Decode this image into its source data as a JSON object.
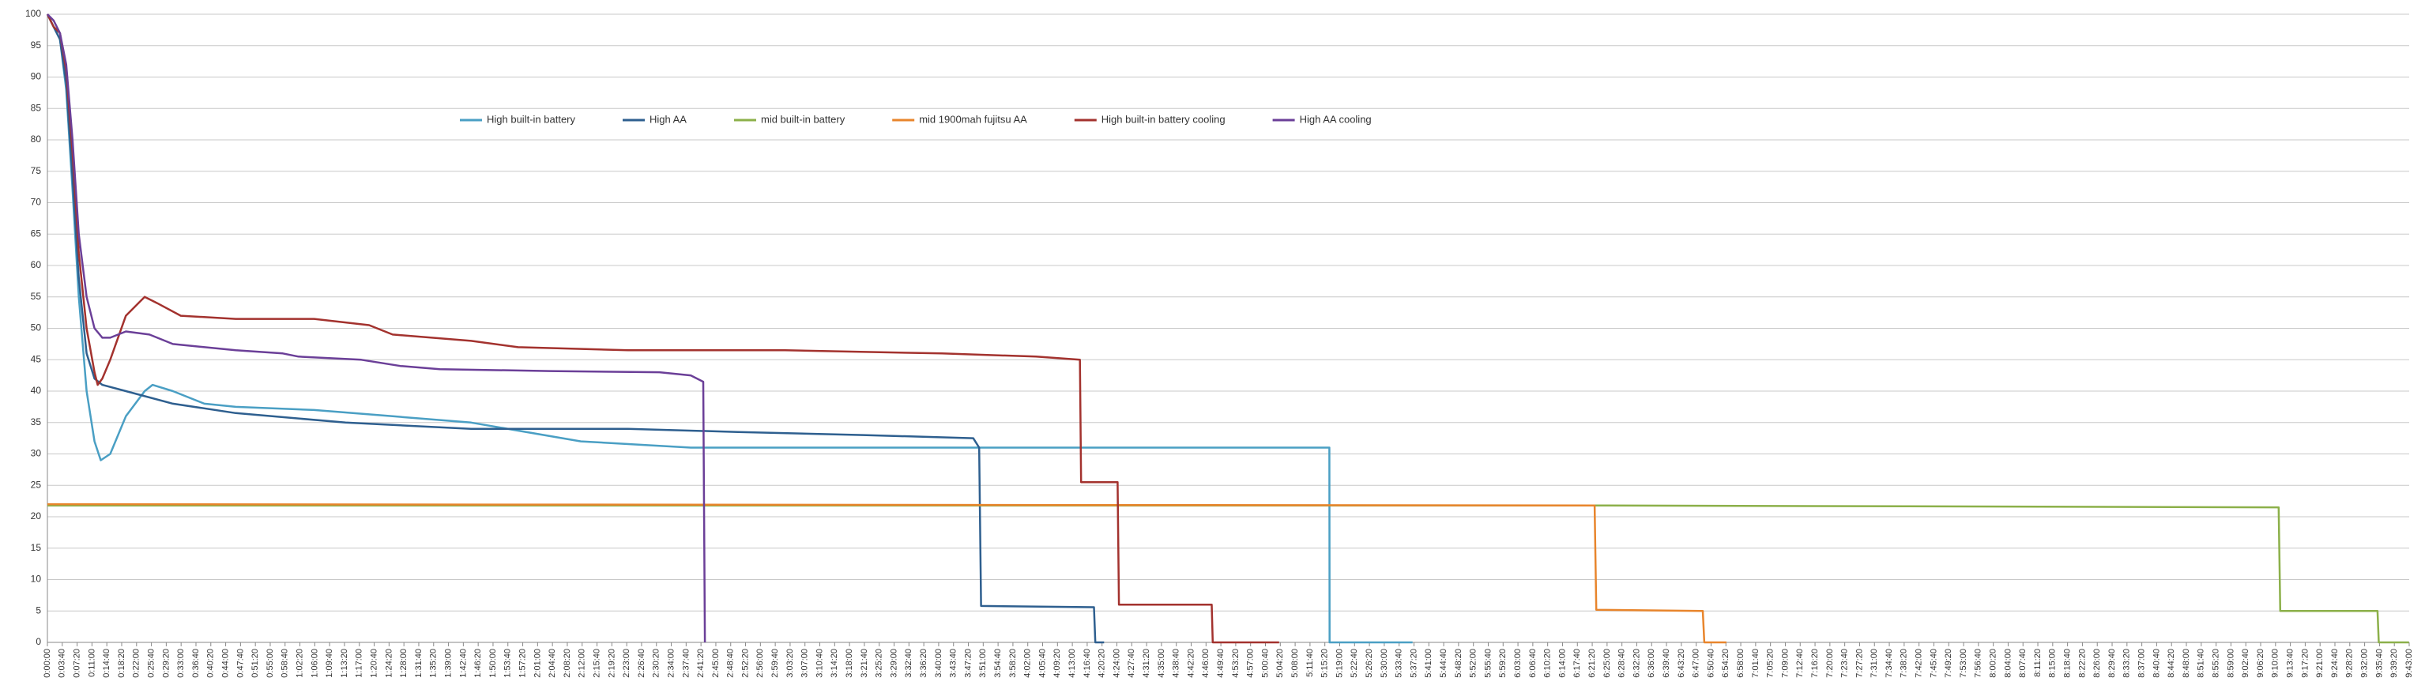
{
  "chart_data": {
    "type": "line",
    "legend": "top-left",
    "grid": true,
    "ylim": [
      0,
      100
    ],
    "yticks": [
      0,
      5,
      10,
      15,
      20,
      25,
      30,
      35,
      40,
      45,
      50,
      55,
      60,
      65,
      70,
      75,
      80,
      85,
      90,
      95,
      100
    ],
    "xlim": [
      0,
      34980
    ],
    "xticks": [
      {
        "value": 0,
        "label": "0:00:00"
      },
      {
        "value": 220,
        "label": "0:03:40"
      },
      {
        "value": 440,
        "label": "0:07:20"
      },
      {
        "value": 660,
        "label": "0:11:00"
      },
      {
        "value": 880,
        "label": "0:14:40"
      },
      {
        "value": 1100,
        "label": "0:18:20"
      },
      {
        "value": 1320,
        "label": "0:22:00"
      },
      {
        "value": 1540,
        "label": "0:25:40"
      },
      {
        "value": 1760,
        "label": "0:29:20"
      },
      {
        "value": 1980,
        "label": "0:33:00"
      },
      {
        "value": 2200,
        "label": "0:36:40"
      },
      {
        "value": 2420,
        "label": "0:40:20"
      },
      {
        "value": 2640,
        "label": "0:44:00"
      },
      {
        "value": 2860,
        "label": "0:47:40"
      },
      {
        "value": 3080,
        "label": "0:51:20"
      },
      {
        "value": 3300,
        "label": "0:55:00"
      },
      {
        "value": 3520,
        "label": "0:58:40"
      },
      {
        "value": 3740,
        "label": "1:02:20"
      },
      {
        "value": 3960,
        "label": "1:06:00"
      },
      {
        "value": 4180,
        "label": "1:09:40"
      },
      {
        "value": 4400,
        "label": "1:13:20"
      },
      {
        "value": 4620,
        "label": "1:17:00"
      },
      {
        "value": 4840,
        "label": "1:20:40"
      },
      {
        "value": 5060,
        "label": "1:24:20"
      },
      {
        "value": 5280,
        "label": "1:28:00"
      },
      {
        "value": 5500,
        "label": "1:31:40"
      },
      {
        "value": 5720,
        "label": "1:35:20"
      },
      {
        "value": 5940,
        "label": "1:39:00"
      },
      {
        "value": 6160,
        "label": "1:42:40"
      },
      {
        "value": 6380,
        "label": "1:46:20"
      },
      {
        "value": 6600,
        "label": "1:50:00"
      },
      {
        "value": 6820,
        "label": "1:53:40"
      },
      {
        "value": 7040,
        "label": "1:57:20"
      },
      {
        "value": 7260,
        "label": "2:01:00"
      },
      {
        "value": 7480,
        "label": "2:04:40"
      },
      {
        "value": 7700,
        "label": "2:08:20"
      },
      {
        "value": 7920,
        "label": "2:12:00"
      },
      {
        "value": 8140,
        "label": "2:15:40"
      },
      {
        "value": 8360,
        "label": "2:19:20"
      },
      {
        "value": 8580,
        "label": "2:23:00"
      },
      {
        "value": 8800,
        "label": "2:26:40"
      },
      {
        "value": 9020,
        "label": "2:30:20"
      },
      {
        "value": 9240,
        "label": "2:34:00"
      },
      {
        "value": 9460,
        "label": "2:37:40"
      },
      {
        "value": 9680,
        "label": "2:41:20"
      },
      {
        "value": 9900,
        "label": "2:45:00"
      },
      {
        "value": 10120,
        "label": "2:48:40"
      },
      {
        "value": 10340,
        "label": "2:52:20"
      },
      {
        "value": 10560,
        "label": "2:56:00"
      },
      {
        "value": 10780,
        "label": "2:59:40"
      },
      {
        "value": 11000,
        "label": "3:03:20"
      },
      {
        "value": 11220,
        "label": "3:07:00"
      },
      {
        "value": 11440,
        "label": "3:10:40"
      },
      {
        "value": 11660,
        "label": "3:14:20"
      },
      {
        "value": 11880,
        "label": "3:18:00"
      },
      {
        "value": 12100,
        "label": "3:21:40"
      },
      {
        "value": 12320,
        "label": "3:25:20"
      },
      {
        "value": 12540,
        "label": "3:29:00"
      },
      {
        "value": 12760,
        "label": "3:32:40"
      },
      {
        "value": 12980,
        "label": "3:36:20"
      },
      {
        "value": 13200,
        "label": "3:40:00"
      },
      {
        "value": 13420,
        "label": "3:43:40"
      },
      {
        "value": 13640,
        "label": "3:47:20"
      },
      {
        "value": 13860,
        "label": "3:51:00"
      },
      {
        "value": 14080,
        "label": "3:54:40"
      },
      {
        "value": 14300,
        "label": "3:58:20"
      },
      {
        "value": 14520,
        "label": "4:02:00"
      },
      {
        "value": 14740,
        "label": "4:05:40"
      },
      {
        "value": 14960,
        "label": "4:09:20"
      },
      {
        "value": 15180,
        "label": "4:13:00"
      },
      {
        "value": 15400,
        "label": "4:16:40"
      },
      {
        "value": 15620,
        "label": "4:20:20"
      },
      {
        "value": 15840,
        "label": "4:24:00"
      },
      {
        "value": 16060,
        "label": "4:27:40"
      },
      {
        "value": 16280,
        "label": "4:31:20"
      },
      {
        "value": 16500,
        "label": "4:35:00"
      },
      {
        "value": 16720,
        "label": "4:38:40"
      },
      {
        "value": 16940,
        "label": "4:42:20"
      },
      {
        "value": 17160,
        "label": "4:46:00"
      },
      {
        "value": 17380,
        "label": "4:49:40"
      },
      {
        "value": 17600,
        "label": "4:53:20"
      },
      {
        "value": 17820,
        "label": "4:57:00"
      },
      {
        "value": 18040,
        "label": "5:00:40"
      },
      {
        "value": 18260,
        "label": "5:04:20"
      },
      {
        "value": 18480,
        "label": "5:08:00"
      },
      {
        "value": 18700,
        "label": "5:11:40"
      },
      {
        "value": 18920,
        "label": "5:15:20"
      },
      {
        "value": 19140,
        "label": "5:19:00"
      },
      {
        "value": 19360,
        "label": "5:22:40"
      },
      {
        "value": 19580,
        "label": "5:26:20"
      },
      {
        "value": 19800,
        "label": "5:30:00"
      },
      {
        "value": 20020,
        "label": "5:33:40"
      },
      {
        "value": 20240,
        "label": "5:37:20"
      },
      {
        "value": 20460,
        "label": "5:41:00"
      },
      {
        "value": 20680,
        "label": "5:44:40"
      },
      {
        "value": 20900,
        "label": "5:48:20"
      },
      {
        "value": 21120,
        "label": "5:52:00"
      },
      {
        "value": 21340,
        "label": "5:55:40"
      },
      {
        "value": 21560,
        "label": "5:59:20"
      },
      {
        "value": 21780,
        "label": "6:03:00"
      },
      {
        "value": 22000,
        "label": "6:06:40"
      },
      {
        "value": 22220,
        "label": "6:10:20"
      },
      {
        "value": 22440,
        "label": "6:14:00"
      },
      {
        "value": 22660,
        "label": "6:17:40"
      },
      {
        "value": 22880,
        "label": "6:21:20"
      },
      {
        "value": 23100,
        "label": "6:25:00"
      },
      {
        "value": 23320,
        "label": "6:28:40"
      },
      {
        "value": 23540,
        "label": "6:32:20"
      },
      {
        "value": 23760,
        "label": "6:36:00"
      },
      {
        "value": 23980,
        "label": "6:39:40"
      },
      {
        "value": 24200,
        "label": "6:43:20"
      },
      {
        "value": 24420,
        "label": "6:47:00"
      },
      {
        "value": 24640,
        "label": "6:50:40"
      },
      {
        "value": 24860,
        "label": "6:54:20"
      },
      {
        "value": 25080,
        "label": "6:58:00"
      },
      {
        "value": 25300,
        "label": "7:01:40"
      },
      {
        "value": 25520,
        "label": "7:05:20"
      },
      {
        "value": 25740,
        "label": "7:09:00"
      },
      {
        "value": 25960,
        "label": "7:12:40"
      },
      {
        "value": 26180,
        "label": "7:16:20"
      },
      {
        "value": 26400,
        "label": "7:20:00"
      },
      {
        "value": 26620,
        "label": "7:23:40"
      },
      {
        "value": 26840,
        "label": "7:27:20"
      },
      {
        "value": 27060,
        "label": "7:31:00"
      },
      {
        "value": 27280,
        "label": "7:34:40"
      },
      {
        "value": 27500,
        "label": "7:38:20"
      },
      {
        "value": 27720,
        "label": "7:42:00"
      },
      {
        "value": 27940,
        "label": "7:45:40"
      },
      {
        "value": 28160,
        "label": "7:49:20"
      },
      {
        "value": 28380,
        "label": "7:53:00"
      },
      {
        "value": 28600,
        "label": "7:56:40"
      },
      {
        "value": 28820,
        "label": "8:00:20"
      },
      {
        "value": 29040,
        "label": "8:04:00"
      },
      {
        "value": 29260,
        "label": "8:07:40"
      },
      {
        "value": 29480,
        "label": "8:11:20"
      },
      {
        "value": 29700,
        "label": "8:15:00"
      },
      {
        "value": 29920,
        "label": "8:18:40"
      },
      {
        "value": 30140,
        "label": "8:22:20"
      },
      {
        "value": 30360,
        "label": "8:26:00"
      },
      {
        "value": 30580,
        "label": "8:29:40"
      },
      {
        "value": 30800,
        "label": "8:33:20"
      },
      {
        "value": 31020,
        "label": "8:37:00"
      },
      {
        "value": 31240,
        "label": "8:40:40"
      },
      {
        "value": 31460,
        "label": "8:44:20"
      },
      {
        "value": 31680,
        "label": "8:48:00"
      },
      {
        "value": 31900,
        "label": "8:51:40"
      },
      {
        "value": 32120,
        "label": "8:55:20"
      },
      {
        "value": 32340,
        "label": "8:59:00"
      },
      {
        "value": 32560,
        "label": "9:02:40"
      },
      {
        "value": 32780,
        "label": "9:06:20"
      },
      {
        "value": 33000,
        "label": "9:10:00"
      },
      {
        "value": 33220,
        "label": "9:13:40"
      },
      {
        "value": 33440,
        "label": "9:17:20"
      },
      {
        "value": 33660,
        "label": "9:21:00"
      },
      {
        "value": 33880,
        "label": "9:24:40"
      },
      {
        "value": 34100,
        "label": "9:28:20"
      },
      {
        "value": 34320,
        "label": "9:32:00"
      },
      {
        "value": 34540,
        "label": "9:35:40"
      },
      {
        "value": 34760,
        "label": "9:39:20"
      },
      {
        "value": 34980,
        "label": "9:43:00"
      }
    ],
    "series": [
      {
        "name": "High built-in battery",
        "color": "#4a9fc4",
        "x": [
          0,
          93,
          186,
          279,
          372,
          465,
          581,
          697,
          790,
          930,
          1162,
          1441,
          1557,
          1859,
          2324,
          2789,
          3951,
          5113,
          6275,
          7902,
          9528,
          12085,
          15571,
          18987,
          18990,
          20219
        ],
        "values": [
          100,
          98,
          96,
          88,
          72,
          55,
          40,
          32,
          29,
          30,
          36,
          40,
          41,
          40,
          38,
          37.5,
          37,
          36,
          35,
          32,
          31,
          31,
          31,
          31,
          0,
          0
        ]
      },
      {
        "name": "High AA",
        "color": "#2e5f8f",
        "x": [
          0,
          93,
          186,
          279,
          372,
          465,
          581,
          697,
          813,
          1162,
          1859,
          2789,
          4416,
          6275,
          8599,
          10226,
          12085,
          13712,
          13800,
          13828,
          15501,
          15520,
          15650
        ],
        "values": [
          100,
          98,
          96,
          89,
          74,
          58,
          46,
          42,
          41,
          40,
          38,
          36.5,
          35,
          34,
          34,
          33.5,
          33,
          32.5,
          31,
          5.8,
          5.6,
          0,
          0
        ]
      },
      {
        "name": "mid built-in battery",
        "color": "#8cb04a",
        "x": [
          0,
          22915,
          33047,
          33070,
          34511,
          34530,
          34977
        ],
        "values": [
          21.8,
          21.8,
          21.5,
          5,
          5,
          0,
          0
        ]
      },
      {
        "name": "mid 1900mah fujitsu AA",
        "color": "#e8852c",
        "x": [
          0,
          22915,
          22940,
          24518,
          24540,
          24867
        ],
        "values": [
          22,
          21.8,
          5.2,
          5,
          0,
          0
        ]
      },
      {
        "name": "High built-in battery cooling",
        "color": "#a3322e",
        "x": [
          0,
          93,
          186,
          279,
          372,
          465,
          581,
          697,
          744,
          813,
          930,
          1162,
          1441,
          1627,
          1975,
          2789,
          3951,
          4764,
          5113,
          6275,
          6972,
          8599,
          10923,
          13247,
          14641,
          15292,
          15310,
          15850,
          15870,
          17244,
          17260,
          18243
        ],
        "values": [
          100,
          98,
          97,
          91,
          78,
          62,
          50,
          43,
          41,
          42,
          45,
          52,
          55,
          54,
          52,
          51.5,
          51.5,
          50.5,
          49,
          48,
          47,
          46.5,
          46.5,
          46,
          45.5,
          45,
          25.5,
          25.5,
          6,
          6,
          0,
          0
        ]
      },
      {
        "name": "High AA cooling",
        "color": "#6b3f98",
        "x": [
          0,
          93,
          186,
          279,
          372,
          465,
          581,
          697,
          813,
          930,
          1162,
          1511,
          1859,
          2789,
          3486,
          3718,
          4648,
          5229,
          5810,
          7437,
          9064,
          9528,
          9714,
          9738
        ],
        "values": [
          100,
          99,
          97,
          92,
          80,
          65,
          55,
          50,
          48.5,
          48.5,
          49.5,
          49,
          47.5,
          46.5,
          46,
          45.5,
          45,
          44,
          43.5,
          43.2,
          43,
          42.5,
          41.5,
          0
        ]
      }
    ]
  }
}
